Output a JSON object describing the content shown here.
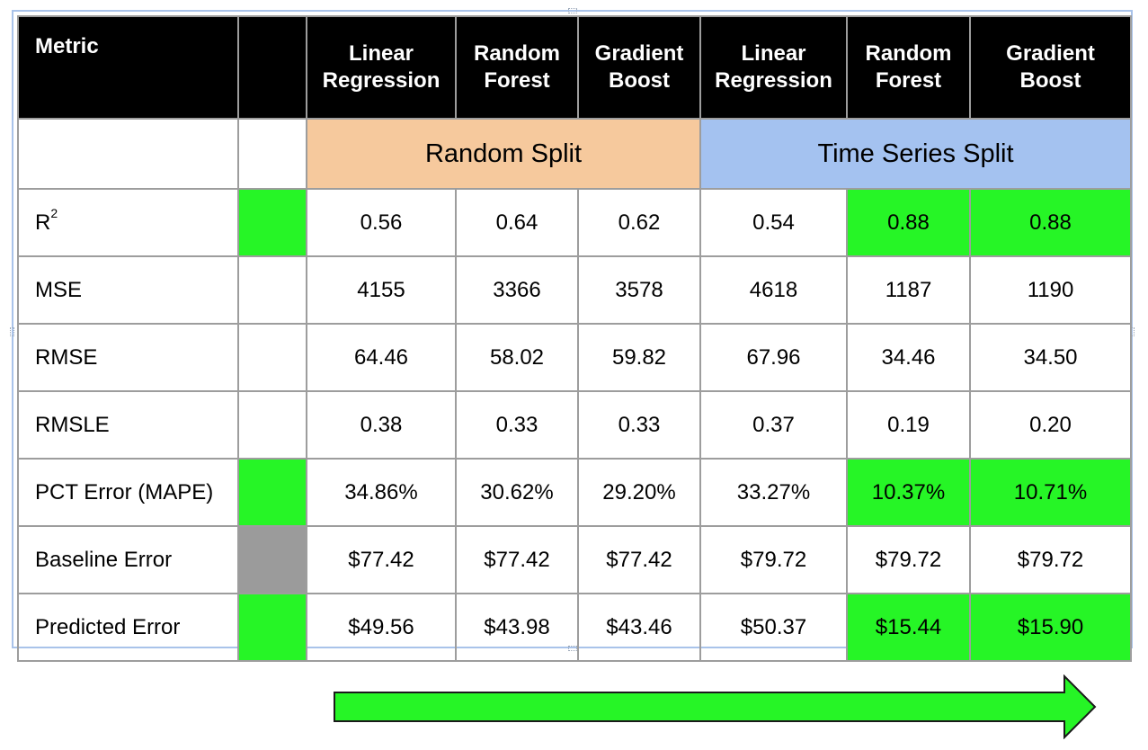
{
  "header": {
    "metric": "Metric",
    "models": [
      [
        "Linear",
        "Regression"
      ],
      [
        "Random",
        "Forest"
      ],
      [
        "Gradient",
        "Boost"
      ],
      [
        "Linear",
        "Regression"
      ],
      [
        "Random",
        "Forest"
      ],
      [
        "Gradient",
        "Boost"
      ]
    ]
  },
  "groups": {
    "random_split": "Random Split",
    "time_series_split": "Time Series Split"
  },
  "rows": [
    {
      "metric": "R",
      "sup": "2",
      "indicator": "green",
      "values": [
        "0.56",
        "0.64",
        "0.62",
        "0.54",
        "0.88",
        "0.88"
      ],
      "highlight": [
        false,
        false,
        false,
        false,
        true,
        true
      ]
    },
    {
      "metric": "MSE",
      "indicator": "none",
      "values": [
        "4155",
        "3366",
        "3578",
        "4618",
        "1187",
        "1190"
      ],
      "highlight": [
        false,
        false,
        false,
        false,
        false,
        false
      ]
    },
    {
      "metric": "RMSE",
      "indicator": "none",
      "values": [
        "64.46",
        "58.02",
        "59.82",
        "67.96",
        "34.46",
        "34.50"
      ],
      "highlight": [
        false,
        false,
        false,
        false,
        false,
        false
      ]
    },
    {
      "metric": "RMSLE",
      "indicator": "none",
      "values": [
        "0.38",
        "0.33",
        "0.33",
        "0.37",
        "0.19",
        "0.20"
      ],
      "highlight": [
        false,
        false,
        false,
        false,
        false,
        false
      ]
    },
    {
      "metric": "PCT Error (MAPE)",
      "indicator": "green",
      "values": [
        "34.86%",
        "30.62%",
        "29.20%",
        "33.27%",
        "10.37%",
        "10.71%"
      ],
      "highlight": [
        false,
        false,
        false,
        false,
        true,
        true
      ]
    },
    {
      "metric": "Baseline Error",
      "indicator": "grey",
      "values": [
        "$77.42",
        "$77.42",
        "$77.42",
        "$79.72",
        "$79.72",
        "$79.72"
      ],
      "highlight": [
        false,
        false,
        false,
        false,
        false,
        false
      ]
    },
    {
      "metric": "Predicted Error",
      "indicator": "green",
      "values": [
        "$49.56",
        "$43.98",
        "$43.46",
        "$50.37",
        "$15.44",
        "$15.90"
      ],
      "highlight": [
        false,
        false,
        false,
        false,
        true,
        true
      ]
    }
  ],
  "colors": {
    "highlight_green": "#26f526",
    "indicator_grey": "#9b9b9b",
    "random_split_bg": "#f6c99d",
    "time_series_bg": "#a4c2f0",
    "header_bg": "#000000",
    "arrow_fill": "#26f526"
  },
  "arrow": {
    "icon": "right-arrow-icon",
    "direction": "right"
  }
}
